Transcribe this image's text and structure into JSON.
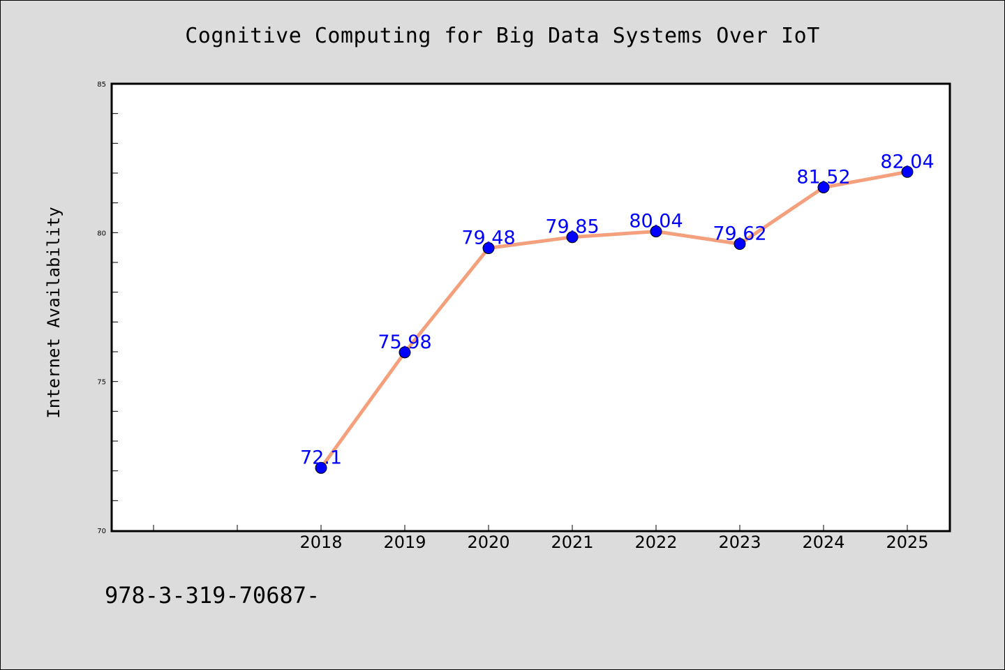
{
  "chart_data": {
    "type": "line",
    "title": "Cognitive Computing for Big Data Systems Over IoT",
    "xlabel": "",
    "ylabel": "Internet Availability",
    "x_slots": 10,
    "x_ticks_unlabeled": 2,
    "categories": [
      "2018",
      "2019",
      "2020",
      "2021",
      "2022",
      "2023",
      "2024",
      "2025"
    ],
    "series": [
      {
        "values": [
          72.1,
          75.98,
          79.48,
          79.85,
          80.04,
          79.62,
          81.52,
          82.04
        ]
      }
    ],
    "data_labels": [
      "72.1",
      "75.98",
      "79.48",
      "79.85",
      "80.04",
      "79.62",
      "81.52",
      "82.04"
    ],
    "ylim": [
      70,
      85
    ],
    "yticks": [
      70,
      75,
      80,
      85
    ],
    "y_minor_step": 1,
    "grid": false,
    "legend": "none",
    "line_color": "#f4a07c",
    "marker_color": "#0000ff",
    "label_color": "#0000ff"
  },
  "footer": {
    "note": "978-3-319-70687-"
  }
}
